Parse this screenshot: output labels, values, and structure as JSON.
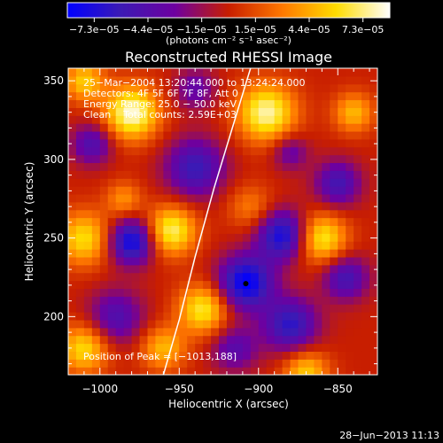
{
  "chart_data": {
    "type": "heatmap",
    "title": "Reconstructed RHESSI Image",
    "xlabel": "Heliocentric X (arcsec)",
    "ylabel": "Heliocentric Y (arcsec)",
    "xlim": [
      -1020,
      -825
    ],
    "ylim": [
      163,
      358
    ],
    "x_ticks": [
      -1000,
      -950,
      -900,
      -850
    ],
    "x_tick_labels": [
      "−1000",
      "−950",
      "−900",
      "−850"
    ],
    "y_ticks": [
      200,
      250,
      300,
      350
    ],
    "y_tick_labels": [
      "200",
      "250",
      "300",
      "350"
    ],
    "colorbar": {
      "ticks": [
        "−7.3e−05",
        "−4.4e−05",
        "−1.5e−05",
        "1.5e−05",
        "4.4e−05",
        "7.3e−05"
      ],
      "range": [
        -7.3e-05,
        7.3e-05
      ],
      "units_label": "(photons cm⁻² s⁻¹ asec⁻²)",
      "colormap": [
        "#0000ff",
        "#3c1ab4",
        "#6e00a0",
        "#c81e00",
        "#ff7800",
        "#ffdc00",
        "#ffffff"
      ]
    },
    "annotations": [
      "25−Mar−2004 13:20:44.000 to 13:24:24.000",
      "Detectors: 4F 5F 6F 7F 8F, Att 0",
      "Energy Range: 25.0 − 50.0 keV",
      "Clean    Total counts: 2.59E+03"
    ],
    "peak_label": "Position of Peak = [−1013,188]",
    "peak_position": [
      -1013,
      188
    ],
    "limb_curve": [
      [
        -960,
        163
      ],
      [
        -950,
        198
      ],
      [
        -940,
        238
      ],
      [
        -928,
        282
      ],
      [
        -915,
        325
      ],
      [
        -905,
        358
      ]
    ],
    "features": [
      {
        "x": -980,
        "y": 248,
        "v": -7e-05,
        "s": 10
      },
      {
        "x": -908,
        "y": 222,
        "v": -7.3e-05,
        "s": 12
      },
      {
        "x": -885,
        "y": 252,
        "v": -6.5e-05,
        "s": 11
      },
      {
        "x": -940,
        "y": 295,
        "v": -5e-05,
        "s": 13
      },
      {
        "x": -880,
        "y": 195,
        "v": -5.5e-05,
        "s": 12
      },
      {
        "x": -850,
        "y": 285,
        "v": -4.5e-05,
        "s": 10
      },
      {
        "x": -1005,
        "y": 310,
        "v": -4e-05,
        "s": 9
      },
      {
        "x": -990,
        "y": 200,
        "v": -4e-05,
        "s": 12
      },
      {
        "x": -845,
        "y": 225,
        "v": -4.5e-05,
        "s": 10
      },
      {
        "x": -915,
        "y": 180,
        "v": -3.5e-05,
        "s": 10
      },
      {
        "x": -940,
        "y": 345,
        "v": -3e-05,
        "s": 9
      },
      {
        "x": -880,
        "y": 305,
        "v": -3e-05,
        "s": 8
      },
      {
        "x": -980,
        "y": 330,
        "v": 7e-05,
        "s": 12
      },
      {
        "x": -895,
        "y": 330,
        "v": 6.5e-05,
        "s": 13
      },
      {
        "x": -955,
        "y": 255,
        "v": 6e-05,
        "s": 11
      },
      {
        "x": -860,
        "y": 250,
        "v": 5.5e-05,
        "s": 11
      },
      {
        "x": -1010,
        "y": 250,
        "v": 5e-05,
        "s": 12
      },
      {
        "x": -935,
        "y": 205,
        "v": 5.5e-05,
        "s": 11
      },
      {
        "x": -1010,
        "y": 180,
        "v": 5e-05,
        "s": 11
      },
      {
        "x": -870,
        "y": 165,
        "v": 4.5e-05,
        "s": 10
      },
      {
        "x": -1010,
        "y": 350,
        "v": 4.5e-05,
        "s": 9
      },
      {
        "x": -840,
        "y": 330,
        "v": 4e-05,
        "s": 9
      },
      {
        "x": -960,
        "y": 180,
        "v": 4e-05,
        "s": 10
      },
      {
        "x": -905,
        "y": 270,
        "v": 2.5e-05,
        "s": 10
      },
      {
        "x": -985,
        "y": 275,
        "v": 3e-05,
        "s": 8
      }
    ],
    "grid": false
  },
  "footer_timestamp": "28−Jun−2013 11:13"
}
